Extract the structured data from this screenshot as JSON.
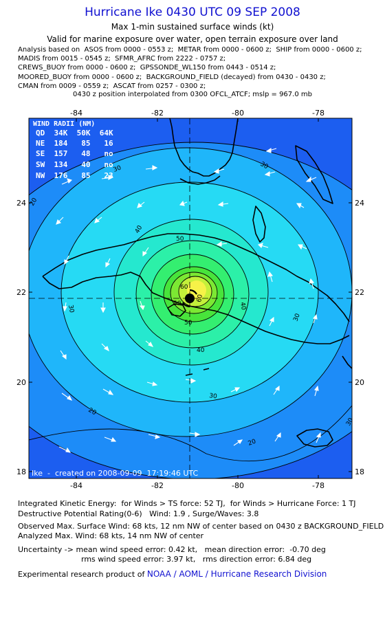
{
  "title": "Hurricane Ike 0430 UTC 09 SEP 2008",
  "subtitle": "Max 1-min sustained surface winds (kt)",
  "valid_line": "Valid for marine exposure over water, open terrain exposure over land",
  "analysis_lines": [
    "Analysis based on  ASOS from 0000 - 0553 z;  METAR from 0000 - 0600 z;  SHIP from 0000 - 0600 z;",
    "MADIS from 0015 - 0545 z;  SFMR_AFRC from 2222 - 0757 z;",
    "CREWS_BUOY from 0000 - 0600 z;  GPSSONDE_WL150 from 0443 - 0514 z;",
    "MOORED_BUOY from 0000 - 0600 z;  BACKGROUND_FIELD (decayed) from 0430 - 0430 z;",
    "CMAN from 0009 - 0559 z;  ASCAT from 0257 - 0300 z;"
  ],
  "interp_line": "0430 z position interpolated from 0300 OFCL_ATCF; mslp = 967.0 mb",
  "map": {
    "lon_ticks": [
      "-84",
      "-82",
      "-80",
      "-78"
    ],
    "lat_ticks": [
      "24",
      "22",
      "20",
      "18"
    ],
    "contour_labels": [
      "30",
      "30",
      "30",
      "30",
      "30",
      "40",
      "40",
      "40",
      "50",
      "50",
      "60",
      "60",
      "20",
      "20",
      "20",
      "50",
      "30"
    ],
    "wind_radii": {
      "title": "WIND RADII (NM)",
      "header": "QD  34K  50K  64K",
      "rows": [
        "NE  184   85   16",
        "SE  157   48   no",
        "SW  134   40   no",
        "NW  176   85   23"
      ]
    },
    "credit": "Ike  -  created on 2008-09-09  17:19:46 UTC",
    "colors": {
      "c0": "#1c5ef0",
      "c1": "#1d8cf8",
      "c2": "#1fb6fa",
      "c3": "#26daf4",
      "c4": "#25e8cf",
      "c5": "#2cf0a8",
      "c6": "#34ef70",
      "c7": "#48e43b",
      "c8": "#7ce833",
      "c9": "#c4f03a",
      "c10": "#f6f248",
      "land": "#000000"
    }
  },
  "footer": {
    "ike_line": "Integrated Kinetic Energy:  for Winds > TS force: 52 TJ,  for Winds > Hurricane Force: 1 TJ",
    "dp_line": "Destructive Potential Rating(0-6)   Wind: 1.9 , Surge/Waves: 3.8",
    "obs_line": "Observed Max. Surface Wind: 68 kts, 12 nm NW of center based on 0430 z BACKGROUND_FIELD",
    "anal_line": "Analyzed Max. Wind: 68 kts, 14 nm NW of center",
    "unc_line1": "Uncertainty -> mean wind speed error: 0.42 kt,   mean direction error:  -0.70 deg",
    "unc_line2": "rms wind speed error: 3.97 kt,   rms direction error: 6.84 deg",
    "credit_prefix": "Experimental research product of ",
    "credit_link": "NOAA / AOML / Hurricane Research Division"
  }
}
